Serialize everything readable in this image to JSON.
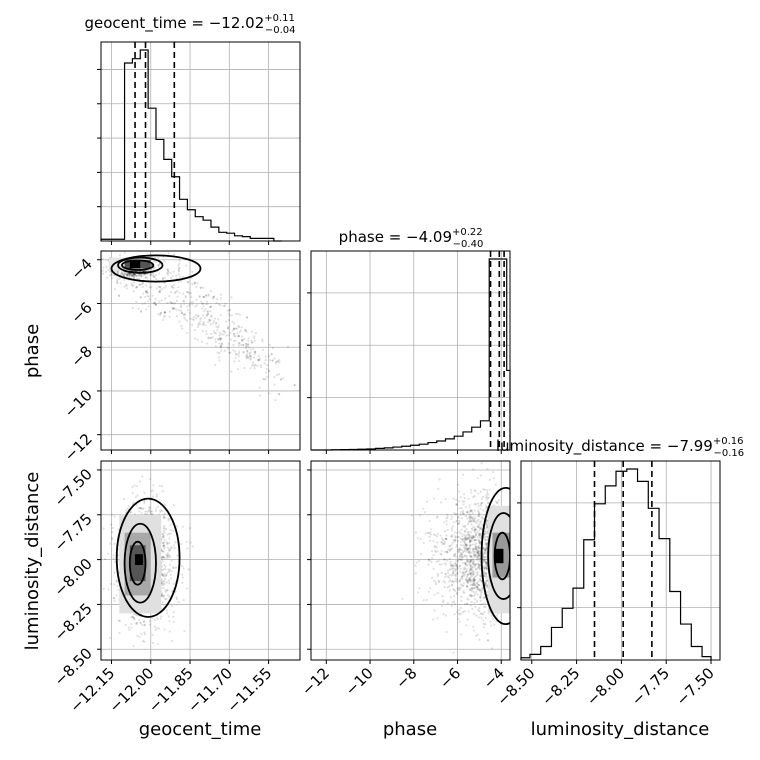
{
  "titles": {
    "geocent_time": {
      "main": "geocent_time = −12.02",
      "sup": "+0.11",
      "sub": "−0.04"
    },
    "phase": {
      "main": "phase = −4.09",
      "sup": "+0.22",
      "sub": "−0.40"
    },
    "luminosity_distance": {
      "main": "luminosity_distance = −7.99",
      "sup": "+0.16",
      "sub": "−0.16"
    }
  },
  "axis_labels": {
    "x": [
      "geocent_time",
      "phase",
      "luminosity_distance"
    ],
    "y": [
      "phase",
      "luminosity_distance"
    ]
  },
  "chart_data": {
    "type": "corner",
    "parameters": [
      "geocent_time",
      "phase",
      "luminosity_distance"
    ],
    "grid": true,
    "ranges": {
      "geocent_time": [
        -12.19,
        -11.43
      ],
      "phase": [
        -12.7,
        -3.6
      ],
      "luminosity_distance": [
        -8.56,
        -7.45
      ]
    },
    "ticks": {
      "geocent_time": [
        -12.15,
        -12.0,
        -11.85,
        -11.7,
        -11.55
      ],
      "phase": [
        -12,
        -10,
        -8,
        -6,
        -4
      ],
      "luminosity_distance": [
        -8.5,
        -8.25,
        -8.0,
        -7.75,
        -7.5
      ]
    },
    "tick_labels": {
      "geocent_time": [
        "−12.15",
        "−12.00",
        "−11.85",
        "−11.70",
        "−11.55"
      ],
      "phase": [
        "−12",
        "−10",
        "−8",
        "−6",
        "−4"
      ],
      "luminosity_distance": [
        "−8.50",
        "−8.25",
        "−8.00",
        "−7.75",
        "−7.50"
      ]
    },
    "histograms": {
      "geocent_time": {
        "quantiles": [
          -12.06,
          -12.02,
          -11.91
        ],
        "edges": [
          -12.19,
          -12.1,
          -12.07,
          -12.04,
          -12.01,
          -11.98,
          -11.95,
          -11.92,
          -11.89,
          -11.86,
          -11.83,
          -11.8,
          -11.77,
          -11.74,
          -11.71,
          -11.68,
          -11.65,
          -11.62,
          -11.59,
          -11.56,
          -11.53,
          -11.5
        ],
        "counts": [
          0.2,
          20.5,
          21,
          22,
          15.3,
          11.7,
          9.4,
          7.4,
          4.8,
          3.6,
          2.8,
          2.4,
          1.6,
          1.0,
          0.9,
          0.6,
          0.5,
          0.3,
          0.3,
          0.3,
          0
        ]
      },
      "phase": {
        "quantiles": [
          -4.49,
          -4.09,
          -3.87
        ],
        "edges": [
          -12.7,
          -11.75,
          -11.35,
          -10.95,
          -10.55,
          -10.15,
          -9.75,
          -9.35,
          -8.95,
          -8.55,
          -8.15,
          -7.75,
          -7.35,
          -6.95,
          -6.55,
          -6.15,
          -5.75,
          -5.35,
          -4.95,
          -4.55,
          -4.35,
          -4.15,
          -3.95,
          -3.75,
          -3.6
        ],
        "counts": [
          0,
          0.05,
          0.07,
          0.1,
          0.15,
          0.2,
          0.3,
          0.4,
          0.55,
          0.7,
          0.9,
          1.1,
          1.4,
          1.7,
          2.1,
          2.6,
          3.4,
          4.3,
          5.5,
          36,
          36,
          36,
          36,
          15
        ]
      },
      "luminosity_distance": {
        "quantiles": [
          -8.15,
          -7.99,
          -7.83
        ],
        "edges": [
          -8.56,
          -8.51,
          -8.45,
          -8.39,
          -8.33,
          -8.27,
          -8.21,
          -8.15,
          -8.09,
          -8.03,
          -7.97,
          -7.91,
          -7.85,
          -7.79,
          -7.73,
          -7.67,
          -7.61,
          -7.55,
          -7.5
        ],
        "counts": [
          0.2,
          0.5,
          1.2,
          2.9,
          4.6,
          6.4,
          10.7,
          13.9,
          15.5,
          16.8,
          17.0,
          15.9,
          13.5,
          10.8,
          6.1,
          3.2,
          1.2,
          0.3
        ]
      }
    },
    "scatter_2d": [
      {
        "x_param": "geocent_time",
        "y_param": "phase",
        "mode": {
          "x": -12.06,
          "y": -4.2
        },
        "sample_trends": [
          {
            "x": [
              -12.15,
              -12.0,
              -11.85,
              -11.7,
              -11.5
            ],
            "y": [
              -4.2,
              -5.5,
              -6.5,
              -7.8,
              -9.5
            ]
          },
          {
            "x": [
              -12.05,
              -11.9,
              -11.75,
              -11.6,
              -11.45
            ],
            "y": [
              -4.2,
              -4.8,
              -6.2,
              -8.0,
              -10.5
            ]
          }
        ]
      },
      {
        "x_param": "geocent_time",
        "y_param": "luminosity_distance",
        "mode": {
          "x": -12.05,
          "y": -8.02
        }
      },
      {
        "x_param": "phase",
        "y_param": "luminosity_distance",
        "mode": {
          "x": -4.1,
          "y": -7.98
        }
      }
    ]
  }
}
